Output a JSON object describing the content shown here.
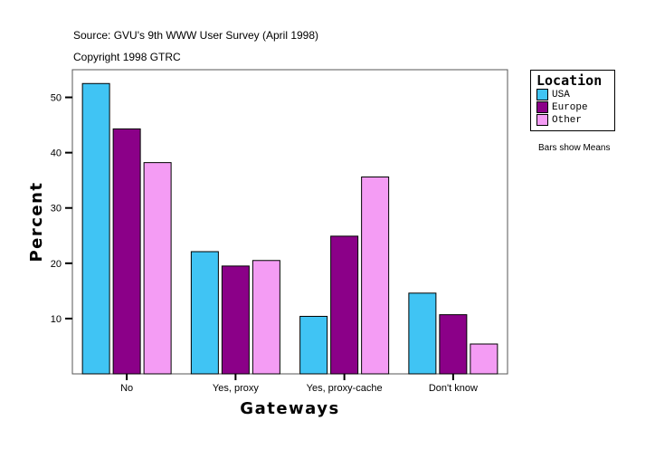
{
  "header": {
    "source": "Source: GVU's 9th WWW User Survey (April 1998)",
    "copyright": "Copyright 1998 GTRC"
  },
  "note": "Bars show Means",
  "chart_data": {
    "type": "bar",
    "xlabel": "Gateways",
    "ylabel": "Percent",
    "ylim": [
      0,
      55
    ],
    "yticks": [
      10,
      20,
      30,
      40,
      50
    ],
    "categories": [
      "No",
      "Yes, proxy",
      "Yes, proxy-cache",
      "Don't know"
    ],
    "legend_title": "Location",
    "legend_position": "right",
    "grid": false,
    "series": [
      {
        "name": "USA",
        "color": "#40C4F4",
        "values": [
          52.5,
          22.1,
          10.4,
          14.6
        ]
      },
      {
        "name": "Europe",
        "color": "#8B0088",
        "values": [
          44.3,
          19.5,
          24.9,
          10.7
        ]
      },
      {
        "name": "Other",
        "color": "#F49CF4",
        "values": [
          38.2,
          20.5,
          35.6,
          5.4
        ]
      }
    ]
  }
}
